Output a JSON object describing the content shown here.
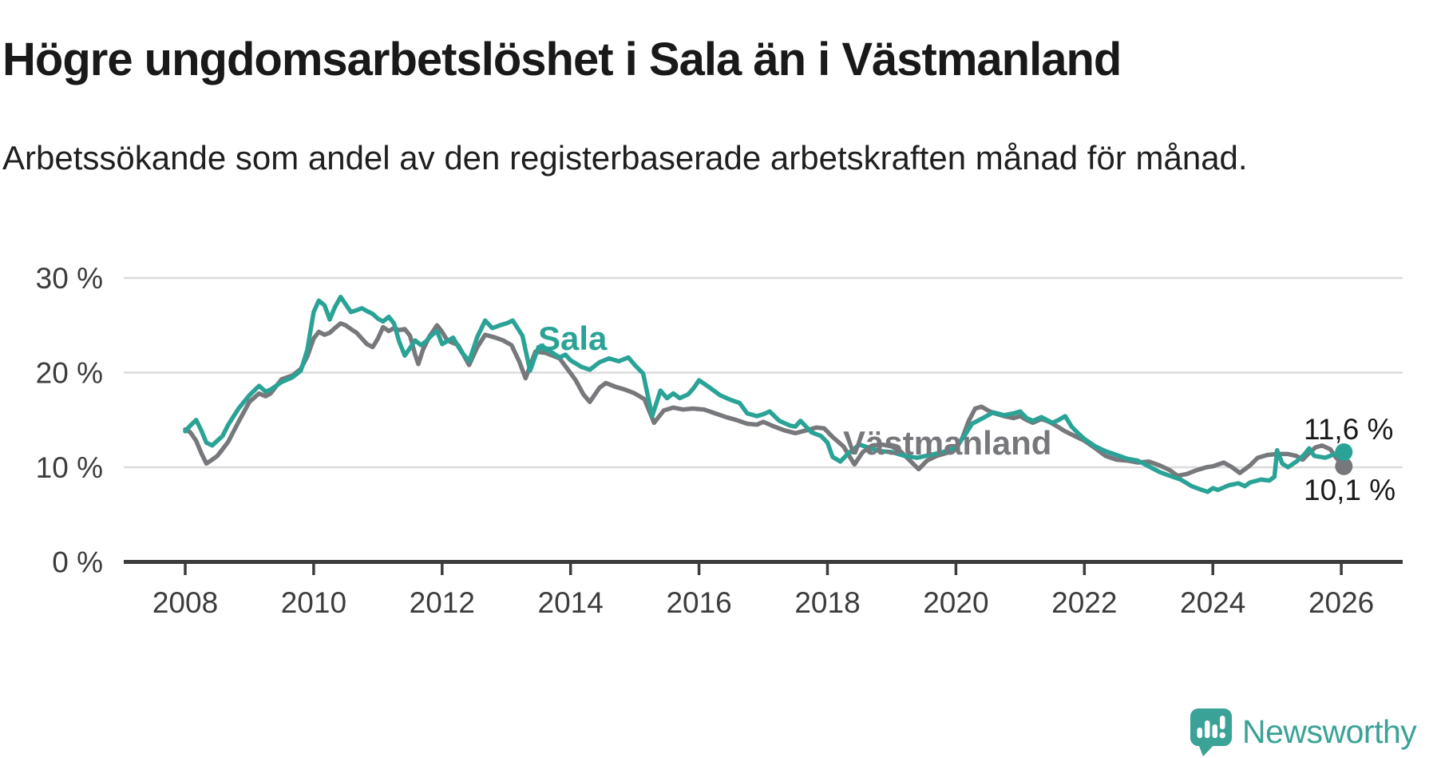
{
  "header": {
    "title": "Högre ungdomsarbetslöshet i Sala än i Västmanland",
    "subtitle": "Arbetssökande som andel av den registerbaserade arbetskraften månad för månad."
  },
  "footer": {
    "brand": "Newsworthy"
  },
  "colors": {
    "sala": "#2aa396",
    "vastmanland": "#77787c",
    "axis": "#3c3c3c",
    "grid": "#dcdcdc",
    "text": "#1a1a1a",
    "brand": "#3aa296"
  },
  "chart_data": {
    "type": "line",
    "title": "Högre ungdomsarbetslöshet i Sala än i Västmanland",
    "subtitle": "Arbetssökande som andel av den registerbaserade arbetskraften månad för månad.",
    "unit": "%",
    "grid": "horizontal",
    "x_axis": {
      "range": [
        2007.05,
        2026.95
      ],
      "ticks": [
        2008,
        2010,
        2012,
        2014,
        2016,
        2018,
        2020,
        2022,
        2024,
        2026
      ]
    },
    "y_axis": {
      "range": [
        0,
        32
      ],
      "ticks": [
        {
          "value": 0,
          "label": "0 %"
        },
        {
          "value": 10,
          "label": "10 %"
        },
        {
          "value": 20,
          "label": "20 %"
        },
        {
          "value": 30,
          "label": "30 %"
        }
      ]
    },
    "series": [
      {
        "name": "Västmanland",
        "color": "#77787c",
        "end_value": 10.1,
        "end_label": "10,1 %",
        "points": [
          [
            2008.0,
            14.0
          ],
          [
            2008.08,
            13.7
          ],
          [
            2008.17,
            12.8
          ],
          [
            2008.25,
            11.5
          ],
          [
            2008.33,
            10.4
          ],
          [
            2008.42,
            10.8
          ],
          [
            2008.5,
            11.2
          ],
          [
            2008.58,
            11.9
          ],
          [
            2008.67,
            12.7
          ],
          [
            2008.83,
            14.8
          ],
          [
            2009.0,
            16.9
          ],
          [
            2009.15,
            17.8
          ],
          [
            2009.25,
            17.5
          ],
          [
            2009.33,
            17.8
          ],
          [
            2009.5,
            19.3
          ],
          [
            2009.67,
            19.7
          ],
          [
            2009.8,
            20.4
          ],
          [
            2009.9,
            21.7
          ],
          [
            2010.0,
            23.6
          ],
          [
            2010.08,
            24.3
          ],
          [
            2010.17,
            24.0
          ],
          [
            2010.25,
            24.2
          ],
          [
            2010.33,
            24.7
          ],
          [
            2010.42,
            25.2
          ],
          [
            2010.5,
            25.0
          ],
          [
            2010.58,
            24.6
          ],
          [
            2010.67,
            24.2
          ],
          [
            2010.75,
            23.6
          ],
          [
            2010.83,
            23.0
          ],
          [
            2010.92,
            22.7
          ],
          [
            2011.0,
            23.6
          ],
          [
            2011.08,
            24.8
          ],
          [
            2011.17,
            24.4
          ],
          [
            2011.25,
            24.7
          ],
          [
            2011.33,
            24.5
          ],
          [
            2011.42,
            24.6
          ],
          [
            2011.5,
            23.9
          ],
          [
            2011.58,
            21.9
          ],
          [
            2011.63,
            20.9
          ],
          [
            2011.7,
            22.4
          ],
          [
            2011.8,
            23.8
          ],
          [
            2011.92,
            25.0
          ],
          [
            2012.0,
            24.3
          ],
          [
            2012.08,
            23.4
          ],
          [
            2012.25,
            22.9
          ],
          [
            2012.42,
            20.8
          ],
          [
            2012.55,
            22.7
          ],
          [
            2012.67,
            24.0
          ],
          [
            2012.83,
            23.7
          ],
          [
            2012.95,
            23.4
          ],
          [
            2013.08,
            22.9
          ],
          [
            2013.2,
            21.2
          ],
          [
            2013.3,
            19.4
          ],
          [
            2013.45,
            22.2
          ],
          [
            2013.6,
            22.1
          ],
          [
            2013.83,
            21.5
          ],
          [
            2013.95,
            20.4
          ],
          [
            2014.08,
            19.2
          ],
          [
            2014.2,
            17.7
          ],
          [
            2014.3,
            16.9
          ],
          [
            2014.45,
            18.4
          ],
          [
            2014.55,
            18.9
          ],
          [
            2014.7,
            18.5
          ],
          [
            2014.85,
            18.2
          ],
          [
            2015.0,
            17.8
          ],
          [
            2015.15,
            17.2
          ],
          [
            2015.3,
            14.7
          ],
          [
            2015.45,
            16.0
          ],
          [
            2015.6,
            16.3
          ],
          [
            2015.75,
            16.1
          ],
          [
            2015.9,
            16.2
          ],
          [
            2016.08,
            16.1
          ],
          [
            2016.25,
            15.7
          ],
          [
            2016.42,
            15.3
          ],
          [
            2016.58,
            15.0
          ],
          [
            2016.75,
            14.6
          ],
          [
            2016.9,
            14.5
          ],
          [
            2017.0,
            14.8
          ],
          [
            2017.17,
            14.3
          ],
          [
            2017.33,
            13.9
          ],
          [
            2017.5,
            13.6
          ],
          [
            2017.67,
            13.9
          ],
          [
            2017.83,
            14.2
          ],
          [
            2017.95,
            14.1
          ],
          [
            2018.08,
            13.2
          ],
          [
            2018.25,
            12.2
          ],
          [
            2018.42,
            10.3
          ],
          [
            2018.55,
            11.6
          ],
          [
            2018.7,
            12.3
          ],
          [
            2018.85,
            12.4
          ],
          [
            2019.0,
            12.2
          ],
          [
            2019.15,
            11.6
          ],
          [
            2019.3,
            10.6
          ],
          [
            2019.42,
            9.8
          ],
          [
            2019.55,
            10.7
          ],
          [
            2019.7,
            11.2
          ],
          [
            2019.85,
            11.5
          ],
          [
            2020.0,
            11.9
          ],
          [
            2020.1,
            13.1
          ],
          [
            2020.2,
            14.9
          ],
          [
            2020.3,
            16.2
          ],
          [
            2020.4,
            16.4
          ],
          [
            2020.5,
            16.0
          ],
          [
            2020.6,
            15.7
          ],
          [
            2020.75,
            15.4
          ],
          [
            2020.9,
            15.2
          ],
          [
            2021.0,
            15.4
          ],
          [
            2021.1,
            15.0
          ],
          [
            2021.2,
            14.7
          ],
          [
            2021.33,
            15.1
          ],
          [
            2021.45,
            14.8
          ],
          [
            2021.58,
            14.3
          ],
          [
            2021.7,
            13.8
          ],
          [
            2021.85,
            13.3
          ],
          [
            2022.0,
            12.8
          ],
          [
            2022.17,
            12.0
          ],
          [
            2022.33,
            11.2
          ],
          [
            2022.5,
            10.8
          ],
          [
            2022.67,
            10.7
          ],
          [
            2022.83,
            10.5
          ],
          [
            2023.0,
            10.6
          ],
          [
            2023.17,
            10.2
          ],
          [
            2023.33,
            9.7
          ],
          [
            2023.45,
            9.1
          ],
          [
            2023.6,
            9.3
          ],
          [
            2023.75,
            9.7
          ],
          [
            2023.9,
            10.0
          ],
          [
            2024.0,
            10.1
          ],
          [
            2024.17,
            10.5
          ],
          [
            2024.3,
            10.0
          ],
          [
            2024.42,
            9.4
          ],
          [
            2024.58,
            10.2
          ],
          [
            2024.7,
            11.0
          ],
          [
            2024.85,
            11.3
          ],
          [
            2025.0,
            11.4
          ],
          [
            2025.17,
            11.4
          ],
          [
            2025.3,
            11.2
          ],
          [
            2025.4,
            10.8
          ],
          [
            2025.5,
            11.5
          ],
          [
            2025.6,
            12.1
          ],
          [
            2025.7,
            12.3
          ],
          [
            2025.83,
            11.9
          ],
          [
            2025.92,
            11.0
          ],
          [
            2026.04,
            10.1
          ]
        ]
      },
      {
        "name": "Sala",
        "color": "#2aa396",
        "end_value": 11.6,
        "end_label": "11,6 %",
        "points": [
          [
            2008.0,
            13.8
          ],
          [
            2008.08,
            14.4
          ],
          [
            2008.17,
            15.0
          ],
          [
            2008.25,
            13.9
          ],
          [
            2008.33,
            12.6
          ],
          [
            2008.42,
            12.3
          ],
          [
            2008.5,
            12.8
          ],
          [
            2008.58,
            13.3
          ],
          [
            2008.67,
            14.5
          ],
          [
            2008.83,
            16.2
          ],
          [
            2009.0,
            17.6
          ],
          [
            2009.15,
            18.6
          ],
          [
            2009.25,
            18.0
          ],
          [
            2009.33,
            18.2
          ],
          [
            2009.5,
            19.0
          ],
          [
            2009.67,
            19.5
          ],
          [
            2009.8,
            20.2
          ],
          [
            2009.9,
            22.4
          ],
          [
            2010.0,
            26.4
          ],
          [
            2010.08,
            27.6
          ],
          [
            2010.17,
            27.1
          ],
          [
            2010.25,
            25.6
          ],
          [
            2010.33,
            26.9
          ],
          [
            2010.42,
            28.0
          ],
          [
            2010.5,
            27.2
          ],
          [
            2010.58,
            26.4
          ],
          [
            2010.67,
            26.6
          ],
          [
            2010.75,
            26.8
          ],
          [
            2010.83,
            26.5
          ],
          [
            2010.92,
            26.2
          ],
          [
            2011.0,
            25.7
          ],
          [
            2011.08,
            25.4
          ],
          [
            2011.17,
            25.9
          ],
          [
            2011.25,
            25.2
          ],
          [
            2011.33,
            23.3
          ],
          [
            2011.42,
            21.8
          ],
          [
            2011.5,
            22.6
          ],
          [
            2011.58,
            23.4
          ],
          [
            2011.67,
            22.9
          ],
          [
            2011.75,
            23.3
          ],
          [
            2011.83,
            23.9
          ],
          [
            2011.92,
            24.4
          ],
          [
            2012.0,
            23.0
          ],
          [
            2012.17,
            23.7
          ],
          [
            2012.3,
            22.2
          ],
          [
            2012.42,
            21.2
          ],
          [
            2012.55,
            23.8
          ],
          [
            2012.67,
            25.5
          ],
          [
            2012.78,
            24.7
          ],
          [
            2012.9,
            25.0
          ],
          [
            2013.0,
            25.2
          ],
          [
            2013.1,
            25.5
          ],
          [
            2013.25,
            23.9
          ],
          [
            2013.37,
            20.2
          ],
          [
            2013.5,
            22.7
          ],
          [
            2013.67,
            22.3
          ],
          [
            2013.83,
            21.6
          ],
          [
            2013.92,
            21.9
          ],
          [
            2014.0,
            21.3
          ],
          [
            2014.17,
            20.6
          ],
          [
            2014.3,
            20.3
          ],
          [
            2014.45,
            21.1
          ],
          [
            2014.6,
            21.5
          ],
          [
            2014.75,
            21.2
          ],
          [
            2014.9,
            21.6
          ],
          [
            2015.0,
            20.8
          ],
          [
            2015.13,
            19.9
          ],
          [
            2015.27,
            15.4
          ],
          [
            2015.4,
            18.1
          ],
          [
            2015.5,
            17.3
          ],
          [
            2015.6,
            17.8
          ],
          [
            2015.7,
            17.3
          ],
          [
            2015.83,
            17.7
          ],
          [
            2015.92,
            18.4
          ],
          [
            2016.0,
            19.2
          ],
          [
            2016.17,
            18.4
          ],
          [
            2016.33,
            17.6
          ],
          [
            2016.5,
            17.1
          ],
          [
            2016.63,
            16.8
          ],
          [
            2016.75,
            15.7
          ],
          [
            2016.9,
            15.4
          ],
          [
            2017.0,
            15.6
          ],
          [
            2017.1,
            15.9
          ],
          [
            2017.25,
            14.9
          ],
          [
            2017.42,
            14.4
          ],
          [
            2017.5,
            14.3
          ],
          [
            2017.58,
            14.9
          ],
          [
            2017.75,
            13.7
          ],
          [
            2017.9,
            13.3
          ],
          [
            2018.0,
            12.6
          ],
          [
            2018.08,
            11.1
          ],
          [
            2018.2,
            10.6
          ],
          [
            2018.33,
            11.5
          ],
          [
            2018.5,
            12.4
          ],
          [
            2018.67,
            12.0
          ],
          [
            2018.83,
            11.7
          ],
          [
            2019.0,
            11.6
          ],
          [
            2019.2,
            11.2
          ],
          [
            2019.4,
            11.0
          ],
          [
            2019.6,
            11.3
          ],
          [
            2019.8,
            11.6
          ],
          [
            2020.0,
            12.1
          ],
          [
            2020.13,
            13.3
          ],
          [
            2020.25,
            14.6
          ],
          [
            2020.42,
            15.2
          ],
          [
            2020.58,
            15.8
          ],
          [
            2020.75,
            15.5
          ],
          [
            2020.9,
            15.7
          ],
          [
            2021.0,
            15.9
          ],
          [
            2021.1,
            15.2
          ],
          [
            2021.2,
            14.9
          ],
          [
            2021.33,
            15.3
          ],
          [
            2021.5,
            14.7
          ],
          [
            2021.6,
            15.0
          ],
          [
            2021.7,
            15.4
          ],
          [
            2021.8,
            14.3
          ],
          [
            2021.9,
            13.6
          ],
          [
            2022.0,
            13.0
          ],
          [
            2022.17,
            12.2
          ],
          [
            2022.33,
            11.7
          ],
          [
            2022.5,
            11.3
          ],
          [
            2022.67,
            10.9
          ],
          [
            2022.83,
            10.7
          ],
          [
            2022.92,
            10.4
          ],
          [
            2023.0,
            10.1
          ],
          [
            2023.17,
            9.5
          ],
          [
            2023.33,
            9.1
          ],
          [
            2023.5,
            8.7
          ],
          [
            2023.67,
            8.0
          ],
          [
            2023.83,
            7.6
          ],
          [
            2023.92,
            7.4
          ],
          [
            2024.0,
            7.8
          ],
          [
            2024.08,
            7.6
          ],
          [
            2024.25,
            8.1
          ],
          [
            2024.4,
            8.3
          ],
          [
            2024.5,
            8.0
          ],
          [
            2024.58,
            8.4
          ],
          [
            2024.75,
            8.7
          ],
          [
            2024.88,
            8.6
          ],
          [
            2024.96,
            9.0
          ],
          [
            2025.0,
            11.8
          ],
          [
            2025.08,
            10.4
          ],
          [
            2025.17,
            10.0
          ],
          [
            2025.3,
            10.6
          ],
          [
            2025.42,
            11.3
          ],
          [
            2025.5,
            12.0
          ],
          [
            2025.58,
            11.2
          ],
          [
            2025.75,
            11.0
          ],
          [
            2025.9,
            11.4
          ],
          [
            2026.04,
            11.6
          ]
        ]
      }
    ]
  }
}
